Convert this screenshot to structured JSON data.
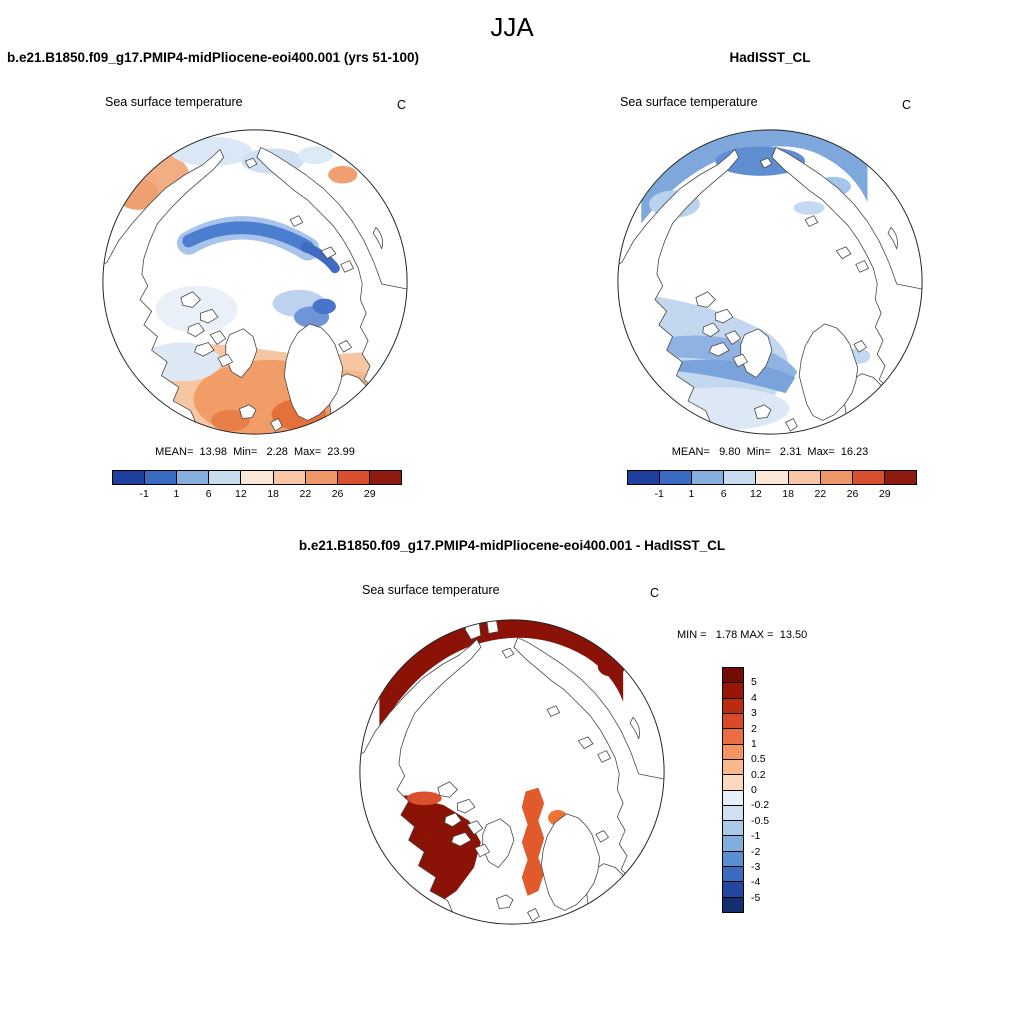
{
  "header": {
    "title": "JJA"
  },
  "panels": {
    "model": {
      "title": "b.e21.B1850.f09_g17.PMIP4-midPliocene-eoi400.001 (yrs 51-100)",
      "field_label": "Sea surface temperature",
      "units": "C",
      "stats_text": "MEAN=  13.98  Min=   2.28  Max=  23.99"
    },
    "obs": {
      "title": "HadISST_CL",
      "field_label": "Sea surface temperature",
      "units": "C",
      "stats_text": "MEAN=   9.80  Min=   2.31  Max=  16.23"
    },
    "diff": {
      "title": "b.e21.B1850.f09_g17.PMIP4-midPliocene-eoi400.001 - HadISST_CL",
      "field_label": "Sea surface temperature",
      "units": "C",
      "stats_text": "MIN =   1.78 MAX =  13.50"
    }
  },
  "chart_data": [
    {
      "type": "heatmap",
      "subtype": "north-polar-stereographic-map",
      "season": "JJA",
      "title": "b.e21.B1850.f09_g17.PMIP4-midPliocene-eoi400.001 (yrs 51-100)",
      "variable": "Sea surface temperature",
      "units": "C",
      "stats": {
        "mean": 13.98,
        "min": 2.28,
        "max": 23.99
      },
      "colorbar": {
        "orientation": "horizontal",
        "levels": [
          -1,
          1,
          6,
          12,
          18,
          22,
          26,
          29
        ],
        "tick_labels": [
          "-1",
          "1",
          "6",
          "12",
          "18",
          "22",
          "26",
          "29"
        ],
        "colors": [
          "#1f3f9e",
          "#3a6bc2",
          "#85b0dd",
          "#c8dcf0",
          "#fbe7d8",
          "#f7c6a4",
          "#ef9768",
          "#d9502e",
          "#8f1a10"
        ]
      }
    },
    {
      "type": "heatmap",
      "subtype": "north-polar-stereographic-map",
      "season": "JJA",
      "title": "HadISST_CL",
      "variable": "Sea surface temperature",
      "units": "C",
      "stats": {
        "mean": 9.8,
        "min": 2.31,
        "max": 16.23
      },
      "colorbar": {
        "orientation": "horizontal",
        "levels": [
          -1,
          1,
          6,
          12,
          18,
          22,
          26,
          29
        ],
        "tick_labels": [
          "-1",
          "1",
          "6",
          "12",
          "18",
          "22",
          "26",
          "29"
        ],
        "colors": [
          "#1f3f9e",
          "#3a6bc2",
          "#85b0dd",
          "#c8dcf0",
          "#fbe7d8",
          "#f7c6a4",
          "#ef9768",
          "#d9502e",
          "#8f1a10"
        ]
      }
    },
    {
      "type": "heatmap",
      "subtype": "north-polar-stereographic-map",
      "season": "JJA",
      "title": "b.e21.B1850.f09_g17.PMIP4-midPliocene-eoi400.001 - HadISST_CL",
      "variable": "Sea surface temperature difference",
      "units": "C",
      "stats": {
        "min": 1.78,
        "max": 13.5
      },
      "colorbar": {
        "orientation": "vertical",
        "levels": [
          5,
          4,
          3,
          2,
          1,
          0.5,
          0.2,
          0,
          -0.2,
          -0.5,
          -1,
          -2,
          -3,
          -4,
          -5
        ],
        "tick_labels": [
          "5",
          "4",
          "3",
          "2",
          "1",
          "0.5",
          "0.2",
          "0",
          "-0.2",
          "-0.5",
          "-1",
          "-2",
          "-3",
          "-4",
          "-5"
        ],
        "colors": [
          "#720c04",
          "#9a1408",
          "#bb2b10",
          "#d84a26",
          "#ea6e42",
          "#f5945f",
          "#f9b98c",
          "#fcd9bd",
          "#e7f0fa",
          "#cfe1f2",
          "#abc9e8",
          "#82aedd",
          "#5a8ecf",
          "#3a6cbd",
          "#21479f",
          "#12306f"
        ]
      }
    }
  ]
}
